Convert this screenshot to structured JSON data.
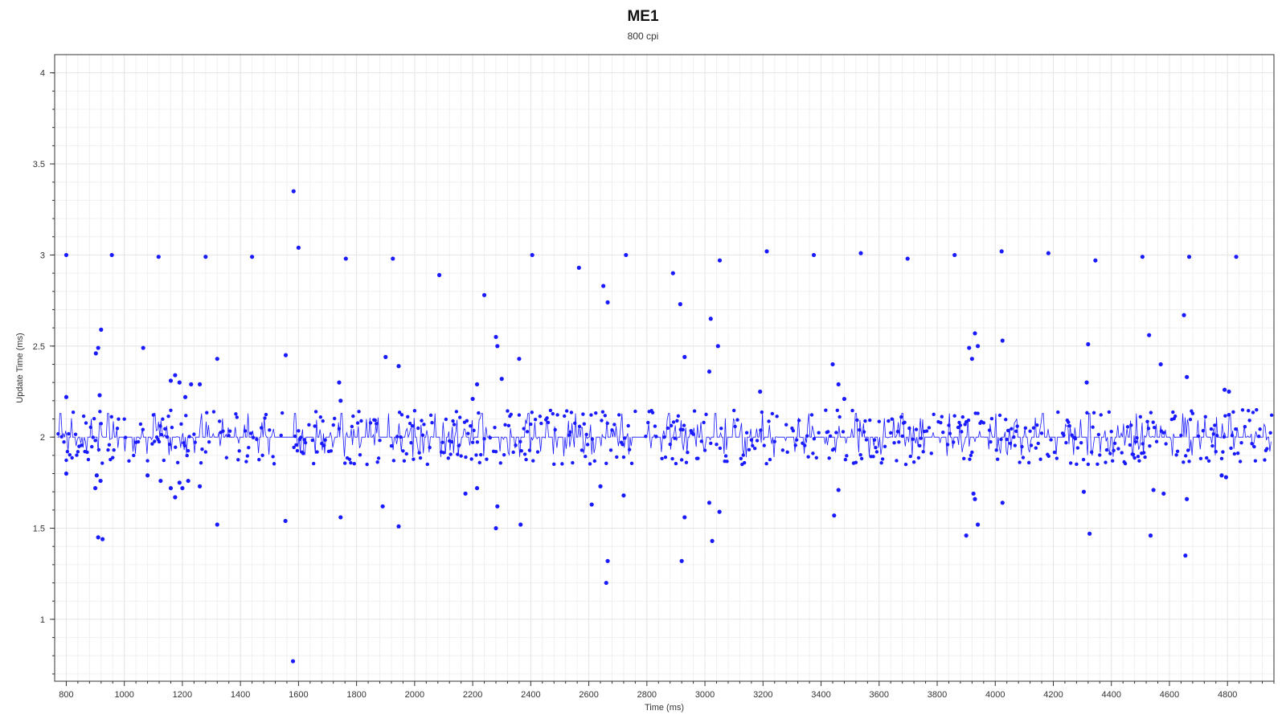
{
  "chart_data": {
    "type": "scatter",
    "title": "ME1",
    "subtitle": "800 cpi",
    "xlabel": "Time (ms)",
    "ylabel": "Update Time (ms)",
    "xlim": [
      760,
      4960
    ],
    "ylim": [
      0.66,
      4.1
    ],
    "x_ticks": [
      800,
      1000,
      1200,
      1400,
      1600,
      1800,
      2000,
      2200,
      2400,
      2600,
      2800,
      3000,
      3200,
      3400,
      3600,
      3800,
      4000,
      4200,
      4400,
      4600,
      4800
    ],
    "y_ticks": [
      1,
      1.5,
      2,
      2.5,
      3,
      3.5,
      4
    ],
    "grid": true,
    "colors": {
      "series": "#1a1aff",
      "grid": "#e6e6e6",
      "axis": "#333333"
    },
    "series": [
      {
        "points": [
          [
            800,
            3.0
          ],
          [
            957,
            3.0
          ],
          [
            1118,
            2.99
          ],
          [
            1280,
            2.99
          ],
          [
            1440,
            2.99
          ],
          [
            1600,
            3.04
          ],
          [
            1763,
            2.98
          ],
          [
            1925,
            2.98
          ],
          [
            2085,
            2.89
          ],
          [
            2405,
            3.0
          ],
          [
            2566,
            2.93
          ],
          [
            2728,
            3.0
          ],
          [
            2890,
            2.9
          ],
          [
            3051,
            2.97
          ],
          [
            3213,
            3.02
          ],
          [
            3375,
            3.0
          ],
          [
            3537,
            3.01
          ],
          [
            3698,
            2.98
          ],
          [
            3860,
            3.0
          ],
          [
            4022,
            3.02
          ],
          [
            4183,
            3.01
          ],
          [
            4345,
            2.97
          ],
          [
            4507,
            2.99
          ],
          [
            4668,
            2.99
          ],
          [
            4830,
            2.99
          ],
          [
            1583,
            3.35
          ],
          [
            1581,
            0.77
          ],
          [
            920,
            2.59
          ],
          [
            910,
            2.49
          ],
          [
            902,
            2.46
          ],
          [
            915,
            2.23
          ],
          [
            800,
            2.22
          ],
          [
            1065,
            2.49
          ],
          [
            1320,
            2.43
          ],
          [
            1556,
            2.45
          ],
          [
            1740,
            2.3
          ],
          [
            1900,
            2.44
          ],
          [
            1945,
            2.39
          ],
          [
            2240,
            2.78
          ],
          [
            2280,
            2.55
          ],
          [
            2285,
            2.5
          ],
          [
            2360,
            2.43
          ],
          [
            2650,
            2.83
          ],
          [
            2665,
            2.74
          ],
          [
            2915,
            2.73
          ],
          [
            2930,
            2.44
          ],
          [
            3020,
            2.65
          ],
          [
            3045,
            2.5
          ],
          [
            3015,
            2.36
          ],
          [
            3440,
            2.4
          ],
          [
            3460,
            2.29
          ],
          [
            3910,
            2.49
          ],
          [
            3930,
            2.57
          ],
          [
            3940,
            2.5
          ],
          [
            3920,
            2.43
          ],
          [
            4025,
            2.53
          ],
          [
            4320,
            2.51
          ],
          [
            4530,
            2.56
          ],
          [
            4570,
            2.4
          ],
          [
            4650,
            2.67
          ],
          [
            4660,
            2.33
          ],
          [
            1160,
            2.31
          ],
          [
            1175,
            2.34
          ],
          [
            1190,
            2.3
          ],
          [
            1210,
            2.22
          ],
          [
            1230,
            2.29
          ],
          [
            1260,
            2.29
          ],
          [
            1745,
            2.2
          ],
          [
            2200,
            2.21
          ],
          [
            2215,
            2.29
          ],
          [
            2300,
            2.32
          ],
          [
            3190,
            2.25
          ],
          [
            3480,
            2.21
          ],
          [
            4315,
            2.3
          ],
          [
            4790,
            2.26
          ],
          [
            4805,
            2.25
          ],
          [
            905,
            1.79
          ],
          [
            900,
            1.72
          ],
          [
            918,
            1.76
          ],
          [
            910,
            1.45
          ],
          [
            925,
            1.44
          ],
          [
            800,
            1.8
          ],
          [
            1160,
            1.72
          ],
          [
            1175,
            1.67
          ],
          [
            1190,
            1.75
          ],
          [
            1200,
            1.72
          ],
          [
            1220,
            1.76
          ],
          [
            1260,
            1.73
          ],
          [
            1320,
            1.52
          ],
          [
            1555,
            1.54
          ],
          [
            1745,
            1.56
          ],
          [
            1890,
            1.62
          ],
          [
            1945,
            1.51
          ],
          [
            2285,
            1.62
          ],
          [
            2280,
            1.5
          ],
          [
            2365,
            1.52
          ],
          [
            2660,
            1.2
          ],
          [
            2665,
            1.32
          ],
          [
            2720,
            1.68
          ],
          [
            2610,
            1.63
          ],
          [
            2640,
            1.73
          ],
          [
            2920,
            1.32
          ],
          [
            2930,
            1.56
          ],
          [
            3015,
            1.64
          ],
          [
            3025,
            1.43
          ],
          [
            3050,
            1.59
          ],
          [
            3445,
            1.57
          ],
          [
            3460,
            1.71
          ],
          [
            3900,
            1.46
          ],
          [
            3930,
            1.66
          ],
          [
            3940,
            1.52
          ],
          [
            3925,
            1.69
          ],
          [
            4025,
            1.64
          ],
          [
            4305,
            1.7
          ],
          [
            4325,
            1.47
          ],
          [
            4535,
            1.46
          ],
          [
            4545,
            1.71
          ],
          [
            4580,
            1.69
          ],
          [
            4655,
            1.35
          ],
          [
            4660,
            1.66
          ],
          [
            4780,
            1.79
          ],
          [
            4795,
            1.78
          ],
          [
            1080,
            1.79
          ],
          [
            1125,
            1.76
          ],
          [
            2175,
            1.69
          ],
          [
            2215,
            1.72
          ]
        ]
      }
    ]
  }
}
